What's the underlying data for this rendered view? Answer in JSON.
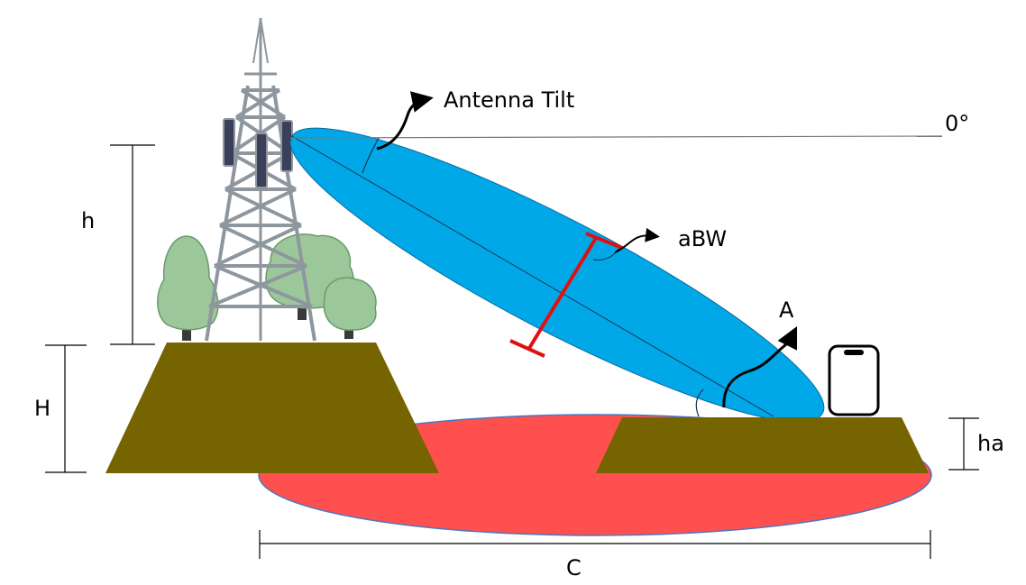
{
  "labels": {
    "antenna_tilt": "Antenna Tilt",
    "zero_degree": "0°",
    "h": "h",
    "H": "H",
    "abw": "aBW",
    "A": "A",
    "ha": "ha",
    "C": "C"
  },
  "colors": {
    "beam": "#00a8e8",
    "coverage": "#ff5050",
    "terrain": "#766400",
    "tower": "#8e969e",
    "panel": "#3a3f5a",
    "tree": "#9bc79a",
    "beamwidth_marker": "#e01010"
  },
  "icons": [
    "cell-tower-icon",
    "tree-icon",
    "smartphone-icon",
    "curved-arrow-icon"
  ]
}
